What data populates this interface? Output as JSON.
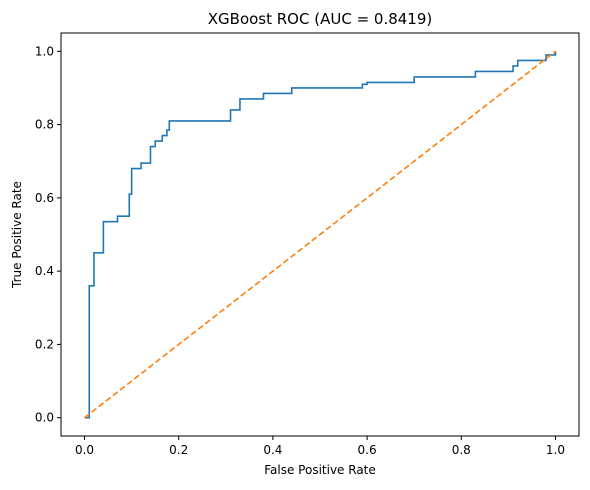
{
  "chart_data": {
    "type": "line",
    "title": "XGBoost ROC (AUC = 0.8419)",
    "xlabel": "False Positive Rate",
    "ylabel": "True Positive Rate",
    "xlim": [
      -0.05,
      1.05
    ],
    "ylim": [
      -0.05,
      1.05
    ],
    "xticks": [
      0.0,
      0.2,
      0.4,
      0.6,
      0.8,
      1.0
    ],
    "yticks": [
      0.0,
      0.2,
      0.4,
      0.6,
      0.8,
      1.0
    ],
    "xtick_labels": [
      "0.0",
      "0.2",
      "0.4",
      "0.6",
      "0.8",
      "1.0"
    ],
    "ytick_labels": [
      "0.0",
      "0.2",
      "0.4",
      "0.6",
      "0.8",
      "1.0"
    ],
    "grid": false,
    "legend": "none",
    "series": [
      {
        "color": "#1f77b4",
        "style": "solid",
        "x": [
          0.0,
          0.01,
          0.01,
          0.02,
          0.02,
          0.04,
          0.04,
          0.07,
          0.07,
          0.095,
          0.095,
          0.1,
          0.1,
          0.12,
          0.12,
          0.14,
          0.14,
          0.15,
          0.15,
          0.165,
          0.165,
          0.175,
          0.175,
          0.18,
          0.18,
          0.31,
          0.31,
          0.33,
          0.33,
          0.38,
          0.38,
          0.4,
          0.4,
          0.44,
          0.44,
          0.59,
          0.59,
          0.6,
          0.6,
          0.7,
          0.7,
          0.83,
          0.83,
          0.91,
          0.91,
          0.92,
          0.92,
          0.98,
          0.98,
          1.0,
          1.0
        ],
        "y": [
          0.0,
          0.0,
          0.36,
          0.36,
          0.45,
          0.45,
          0.535,
          0.535,
          0.55,
          0.55,
          0.61,
          0.61,
          0.68,
          0.68,
          0.695,
          0.695,
          0.74,
          0.74,
          0.755,
          0.755,
          0.77,
          0.77,
          0.785,
          0.785,
          0.81,
          0.81,
          0.84,
          0.84,
          0.87,
          0.87,
          0.885,
          0.885,
          0.885,
          0.885,
          0.9,
          0.9,
          0.91,
          0.91,
          0.915,
          0.915,
          0.93,
          0.93,
          0.945,
          0.945,
          0.96,
          0.96,
          0.975,
          0.975,
          0.99,
          0.99,
          1.0
        ]
      },
      {
        "color": "#ff7f0e",
        "style": "dashed",
        "x": [
          0.0,
          1.0
        ],
        "y": [
          0.0,
          1.0
        ]
      }
    ]
  }
}
